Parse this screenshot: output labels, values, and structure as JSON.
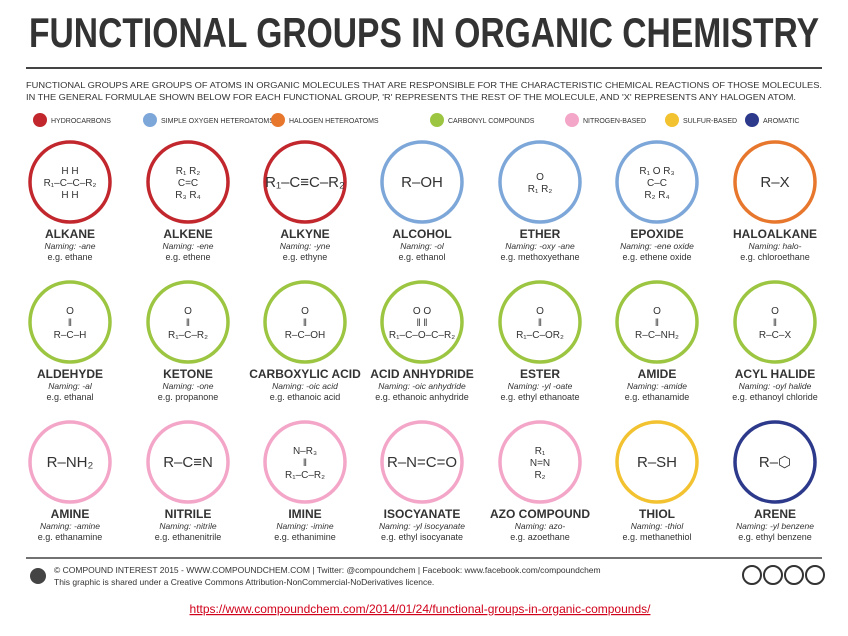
{
  "header": {
    "title": "FUNCTIONAL GROUPS IN ORGANIC CHEMISTRY",
    "intro": [
      "FUNCTIONAL GROUPS ARE GROUPS OF ATOMS IN ORGANIC MOLECULES THAT ARE RESPONSIBLE FOR THE CHARACTERISTIC CHEMICAL REACTIONS OF THOSE MOLECULES.",
      "IN THE GENERAL FORMULAE SHOWN BELOW FOR EACH FUNCTIONAL GROUP, 'R' REPRESENTS THE REST OF THE MOLECULE, AND 'X' REPRESENTS ANY HALOGEN ATOM."
    ]
  },
  "legend": [
    {
      "label": "HYDROCARBONS",
      "color": "#c1272d"
    },
    {
      "label": "SIMPLE OXYGEN HETEROATOMS",
      "color": "#7da7d9"
    },
    {
      "label": "HALOGEN HETEROATOMS",
      "color": "#e8772e"
    },
    {
      "label": "CARBONYL COMPOUNDS",
      "color": "#9cc641"
    },
    {
      "label": "NITROGEN-BASED",
      "color": "#f3a6c8"
    },
    {
      "label": "SULFUR-BASED",
      "color": "#f2c230"
    },
    {
      "label": "AROMATIC",
      "color": "#2d3a8c"
    }
  ],
  "groups": [
    {
      "name": "ALKANE",
      "naming": "Naming: -ane",
      "example": "e.g. ethane",
      "color": "#c1272d",
      "formula": [
        "H   H",
        "R₁–C–C–R₂",
        "H   H"
      ]
    },
    {
      "name": "ALKENE",
      "naming": "Naming: -ene",
      "example": "e.g. ethene",
      "color": "#c1272d",
      "formula": [
        "R₁      R₂",
        "C=C",
        "R₃      R₄"
      ]
    },
    {
      "name": "ALKYNE",
      "naming": "Naming: -yne",
      "example": "e.g. ethyne",
      "color": "#c1272d",
      "formula": [
        "R₁–C≡C–R₂"
      ]
    },
    {
      "name": "ALCOHOL",
      "naming": "Naming: -ol",
      "example": "e.g. ethanol",
      "color": "#7da7d9",
      "formula": [
        "R–OH"
      ]
    },
    {
      "name": "ETHER",
      "naming": "Naming: -oxy -ane",
      "example": "e.g. methoxyethane",
      "color": "#7da7d9",
      "formula": [
        "O",
        "R₁    R₂"
      ]
    },
    {
      "name": "EPOXIDE",
      "naming": "Naming: -ene oxide",
      "example": "e.g. ethene oxide",
      "color": "#7da7d9",
      "formula": [
        "R₁  O  R₃",
        "C–C",
        "R₂      R₄"
      ]
    },
    {
      "name": "HALOALKANE",
      "naming": "Naming: halo-",
      "example": "e.g. chloroethane",
      "color": "#e8772e",
      "formula": [
        "R–X"
      ]
    },
    {
      "name": "ALDEHYDE",
      "naming": "Naming: -al",
      "example": "e.g. ethanal",
      "color": "#9cc641",
      "formula": [
        "O",
        "‖",
        "R–C–H"
      ]
    },
    {
      "name": "KETONE",
      "naming": "Naming: -one",
      "example": "e.g. propanone",
      "color": "#9cc641",
      "formula": [
        "O",
        "‖",
        "R₁–C–R₂"
      ]
    },
    {
      "name": "CARBOXYLIC ACID",
      "naming": "Naming: -oic acid",
      "example": "e.g. ethanoic acid",
      "color": "#9cc641",
      "formula": [
        "O",
        "‖",
        "R–C–OH"
      ]
    },
    {
      "name": "ACID ANHYDRIDE",
      "naming": "Naming: -oic anhydride",
      "example": "e.g. ethanoic anhydride",
      "color": "#9cc641",
      "formula": [
        "O     O",
        "‖     ‖",
        "R₁–C–O–C–R₂"
      ]
    },
    {
      "name": "ESTER",
      "naming": "Naming: -yl -oate",
      "example": "e.g. ethyl ethanoate",
      "color": "#9cc641",
      "formula": [
        "O",
        "‖",
        "R₁–C–OR₂"
      ]
    },
    {
      "name": "AMIDE",
      "naming": "Naming: -amide",
      "example": "e.g. ethanamide",
      "color": "#9cc641",
      "formula": [
        "O",
        "‖",
        "R–C–NH₂"
      ]
    },
    {
      "name": "ACYL HALIDE",
      "naming": "Naming: -oyl halide",
      "example": "e.g. ethanoyl chloride",
      "color": "#9cc641",
      "formula": [
        "O",
        "‖",
        "R–C–X"
      ]
    },
    {
      "name": "AMINE",
      "naming": "Naming: -amine",
      "example": "e.g. ethanamine",
      "color": "#f3a6c8",
      "formula": [
        "R–NH₂"
      ]
    },
    {
      "name": "NITRILE",
      "naming": "Naming: -nitrile",
      "example": "e.g. ethanenitrile",
      "color": "#f3a6c8",
      "formula": [
        "R–C≡N"
      ]
    },
    {
      "name": "IMINE",
      "naming": "Naming: -imine",
      "example": "e.g. ethanimine",
      "color": "#f3a6c8",
      "formula": [
        "N–R₃",
        "‖",
        "R₁–C–R₂"
      ]
    },
    {
      "name": "ISOCYANATE",
      "naming": "Naming: -yl isocyanate",
      "example": "e.g. ethyl isocyanate",
      "color": "#f3a6c8",
      "formula": [
        "R–N=C=O"
      ]
    },
    {
      "name": "AZO COMPOUND",
      "naming": "Naming: azo-",
      "example": "e.g. azoethane",
      "color": "#f3a6c8",
      "formula": [
        "R₁",
        "N=N",
        "R₂"
      ]
    },
    {
      "name": "THIOL",
      "naming": "Naming: -thiol",
      "example": "e.g. methanethiol",
      "color": "#f2c230",
      "formula": [
        "R–SH"
      ]
    },
    {
      "name": "ARENE",
      "naming": "Naming: -yl benzene",
      "example": "e.g. ethyl benzene",
      "color": "#2d3a8c",
      "formula": [
        "R–⬡"
      ]
    }
  ],
  "footer": {
    "credit": "© COMPOUND INTEREST 2015 - WWW.COMPOUNDCHEM.COM | Twitter: @compoundchem | Facebook: www.facebook.com/compoundchem",
    "license": "This graphic is shared under a Creative Commons Attribution-NonCommercial-NoDerivatives licence.",
    "url": "https://www.compoundchem.com/2014/01/24/functional-groups-in-organic-compounds/"
  }
}
